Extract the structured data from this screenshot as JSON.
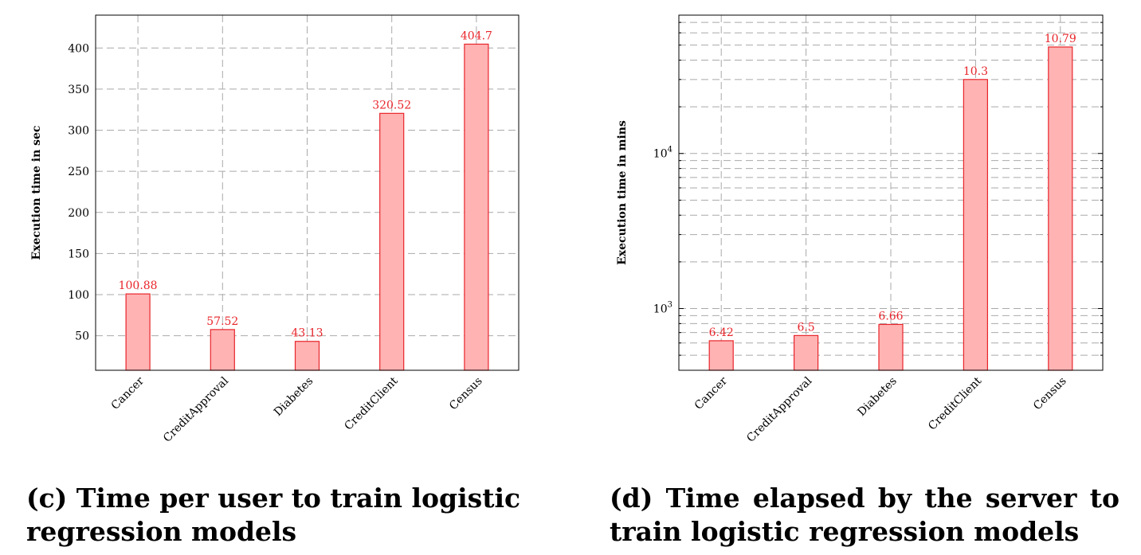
{
  "chart_data": [
    {
      "type": "bar",
      "categories": [
        "Cancer",
        "CreditApproval",
        "Diabetes",
        "CreditClient",
        "Census"
      ],
      "values": [
        100.88,
        57.52,
        43.13,
        320.52,
        404.7
      ],
      "data_labels": [
        "100.88",
        "57.52",
        "43.13",
        "320.52",
        "404.7"
      ],
      "ylabel": "Execution time in sec",
      "yticks": [
        "50",
        "100",
        "150",
        "200",
        "250",
        "300",
        "350",
        "400"
      ],
      "ytick_values": [
        50,
        100,
        150,
        200,
        250,
        300,
        350,
        400
      ],
      "ylim": [
        8,
        440
      ],
      "grid": true,
      "color": "#ffb3b3",
      "edge_color": "#e8252b",
      "label_color": "#e8252b",
      "caption": "(c) Time per user to train logistic regression models"
    },
    {
      "type": "bar",
      "yscale": "log",
      "categories": [
        "Cancer",
        "CreditApproval",
        "Diabetes",
        "CreditClient",
        "Census"
      ],
      "values": [
        620,
        670,
        790,
        30000,
        48600
      ],
      "data_labels": [
        "6.42",
        "6.5",
        "6.66",
        "10.3",
        "10.79"
      ],
      "ylabel": "Execution time in mins",
      "yticks": [
        {
          "base": "10",
          "exp": "3"
        },
        {
          "base": "10",
          "exp": "4"
        }
      ],
      "ytick_values": [
        1000,
        10000
      ],
      "ylim": [
        400,
        78000
      ],
      "grid": true,
      "color": "#ffb3b3",
      "edge_color": "#e8252b",
      "label_color": "#e8252b",
      "caption": "(d) Time elapsed by the server to train logistic regression models"
    }
  ]
}
